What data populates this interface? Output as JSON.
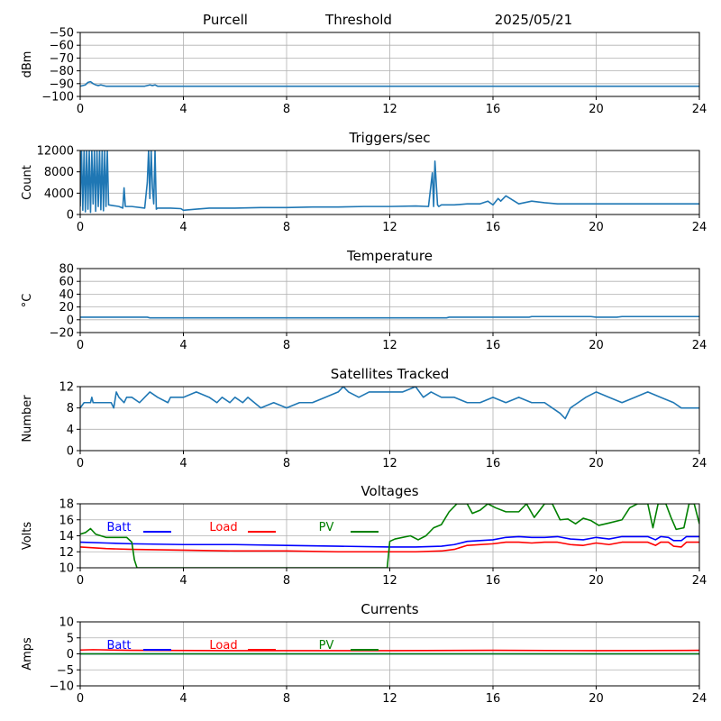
{
  "header": {
    "site": "Purcell",
    "kind": "Threshold",
    "date": "2025/05/21"
  },
  "colors": {
    "series": "#1f77b4",
    "batt": "#0000ff",
    "load": "#ff0000",
    "pv": "#008000",
    "grid": "#b0b0b0"
  },
  "chart_data": [
    {
      "id": "threshold",
      "type": "line",
      "title": "",
      "ylabel": "dBm",
      "xlim": [
        0,
        24
      ],
      "ylim": [
        -100,
        -50
      ],
      "xticks": [
        0,
        4,
        8,
        12,
        16,
        20,
        24
      ],
      "yticks": [
        -100,
        -90,
        -80,
        -70,
        -60,
        -50
      ],
      "ytick_labels": [
        "−100",
        "−90",
        "−80",
        "−70",
        "−60",
        "−50"
      ],
      "grid": true,
      "series": [
        {
          "color": "#1f77b4",
          "x": [
            0,
            0.2,
            0.3,
            0.4,
            0.5,
            0.6,
            0.7,
            0.8,
            1.0,
            1.5,
            2.0,
            2.5,
            2.7,
            2.8,
            2.9,
            3.0,
            4,
            8,
            12,
            16,
            20,
            24
          ],
          "y": [
            -92,
            -91,
            -89,
            -88.5,
            -90,
            -91,
            -91.5,
            -91,
            -92,
            -92,
            -92,
            -92,
            -91,
            -91.5,
            -91,
            -92,
            -92,
            -92,
            -92,
            -92,
            -92,
            -92
          ]
        }
      ]
    },
    {
      "id": "triggers",
      "type": "line",
      "title": "Triggers/sec",
      "ylabel": "Count",
      "xlim": [
        0,
        24
      ],
      "ylim": [
        0,
        12000
      ],
      "xticks": [
        0,
        4,
        8,
        12,
        16,
        20,
        24
      ],
      "yticks": [
        0,
        4000,
        8000,
        12000
      ],
      "ytick_labels": [
        "0",
        "4000",
        "8000",
        "12000"
      ],
      "grid": true,
      "series": [
        {
          "color": "#1f77b4",
          "x": [
            0,
            0.05,
            0.1,
            0.15,
            0.2,
            0.25,
            0.3,
            0.35,
            0.4,
            0.45,
            0.5,
            0.55,
            0.6,
            0.65,
            0.7,
            0.75,
            0.8,
            0.85,
            0.9,
            0.95,
            1.0,
            1.05,
            1.1,
            1.5,
            1.65,
            1.7,
            1.75,
            2.0,
            2.5,
            2.6,
            2.65,
            2.7,
            2.75,
            2.8,
            2.85,
            2.9,
            2.95,
            3.0,
            3.5,
            3.9,
            4.0,
            4.5,
            5,
            6,
            7,
            8,
            9,
            10,
            11,
            12,
            13,
            13.5,
            13.65,
            13.7,
            13.75,
            13.85,
            13.9,
            14,
            14.5,
            15,
            15.5,
            15.8,
            16,
            16.2,
            16.3,
            16.5,
            17,
            17.5,
            18,
            18.5,
            19,
            20,
            21,
            22,
            23,
            24
          ],
          "y": [
            1500,
            12000,
            800,
            12000,
            500,
            12000,
            1000,
            12000,
            400,
            12000,
            2000,
            12000,
            600,
            12000,
            1500,
            12000,
            900,
            12000,
            700,
            12000,
            1500,
            12000,
            1800,
            1500,
            1200,
            5000,
            1500,
            1500,
            1200,
            6000,
            12000,
            3000,
            12000,
            5000,
            2000,
            12000,
            1000,
            1200,
            1200,
            1100,
            800,
            1000,
            1200,
            1200,
            1300,
            1300,
            1400,
            1400,
            1500,
            1500,
            1600,
            1500,
            7800,
            1500,
            10000,
            1800,
            1500,
            1800,
            1800,
            2000,
            2000,
            2500,
            1800,
            3000,
            2500,
            3500,
            2000,
            2500,
            2200,
            2000,
            2000,
            2000,
            2000,
            2000,
            2000,
            2000
          ]
        }
      ]
    },
    {
      "id": "temperature",
      "type": "line",
      "title": "Temperature",
      "ylabel": "°C",
      "xlim": [
        0,
        24
      ],
      "ylim": [
        -20,
        80
      ],
      "xticks": [
        0,
        4,
        8,
        12,
        16,
        20,
        24
      ],
      "yticks": [
        -20,
        0,
        20,
        40,
        60,
        80
      ],
      "ytick_labels": [
        "−20",
        "0",
        "20",
        "40",
        "60",
        "80"
      ],
      "grid": true,
      "series": [
        {
          "color": "#1f77b4",
          "x": [
            0,
            2.6,
            2.7,
            14.2,
            14.3,
            17.4,
            17.5,
            19.8,
            20.0,
            20.8,
            21.0,
            24
          ],
          "y": [
            4,
            4,
            3,
            3,
            4,
            4,
            5,
            5,
            4,
            4,
            5,
            5
          ]
        }
      ]
    },
    {
      "id": "satellites",
      "type": "line",
      "title": "Satellites Tracked",
      "ylabel": "Number",
      "xlim": [
        0,
        24
      ],
      "ylim": [
        0,
        12
      ],
      "xticks": [
        0,
        4,
        8,
        12,
        16,
        20,
        24
      ],
      "yticks": [
        0,
        4,
        8,
        12
      ],
      "ytick_labels": [
        "0",
        "4",
        "8",
        "12"
      ],
      "grid": true,
      "series": [
        {
          "color": "#1f77b4",
          "x": [
            0,
            0.15,
            0.3,
            0.4,
            0.45,
            0.5,
            1.2,
            1.3,
            1.4,
            1.5,
            1.7,
            1.8,
            2.0,
            2.3,
            2.5,
            2.7,
            3.0,
            3.4,
            3.5,
            4.0,
            4.5,
            5.0,
            5.3,
            5.5,
            5.8,
            6.0,
            6.3,
            6.5,
            7.0,
            7.5,
            8.0,
            8.5,
            9.0,
            9.5,
            10.0,
            10.2,
            10.4,
            10.8,
            11.2,
            11.8,
            12.5,
            13.0,
            13.3,
            13.6,
            14.0,
            14.5,
            15.0,
            15.5,
            16.0,
            16.5,
            17.0,
            17.5,
            18.0,
            18.3,
            18.6,
            18.8,
            19.0,
            19.3,
            19.6,
            20.0,
            20.5,
            21.0,
            21.5,
            22.0,
            22.5,
            23.0,
            23.3,
            24
          ],
          "y": [
            8,
            9,
            9,
            9,
            10,
            9,
            9,
            8,
            11,
            10,
            9,
            10,
            10,
            9,
            10,
            11,
            10,
            9,
            10,
            10,
            11,
            10,
            9,
            10,
            9,
            10,
            9,
            10,
            8,
            9,
            8,
            9,
            9,
            10,
            11,
            12,
            11,
            10,
            11,
            11,
            11,
            12,
            10,
            11,
            10,
            10,
            9,
            9,
            10,
            9,
            10,
            9,
            9,
            8,
            7,
            6,
            8,
            9,
            10,
            11,
            10,
            9,
            10,
            11,
            10,
            9,
            8,
            8
          ]
        }
      ]
    },
    {
      "id": "voltages",
      "type": "line",
      "title": "Voltages",
      "ylabel": "Volts",
      "xlim": [
        0,
        24
      ],
      "ylim": [
        10,
        18
      ],
      "xticks": [
        0,
        4,
        8,
        12,
        16,
        20,
        24
      ],
      "yticks": [
        10,
        12,
        14,
        16,
        18
      ],
      "ytick_labels": [
        "10",
        "12",
        "14",
        "16",
        "18"
      ],
      "grid": true,
      "legend": {
        "placement": "top-left",
        "entries": [
          "Batt",
          "Load",
          "PV"
        ]
      },
      "series": [
        {
          "name": "Batt",
          "color": "#0000ff",
          "x": [
            0,
            1,
            2,
            4,
            6,
            8,
            10,
            12,
            13,
            14,
            14.5,
            15,
            16,
            16.5,
            17,
            17.5,
            18,
            18.5,
            19,
            19.5,
            20,
            20.5,
            21,
            22,
            22.3,
            22.5,
            22.8,
            23,
            23.3,
            23.5,
            24
          ],
          "y": [
            13.2,
            13.1,
            13.0,
            12.9,
            12.9,
            12.8,
            12.7,
            12.6,
            12.6,
            12.7,
            12.9,
            13.3,
            13.5,
            13.8,
            13.9,
            13.8,
            13.8,
            13.9,
            13.6,
            13.5,
            13.8,
            13.6,
            13.9,
            13.9,
            13.5,
            13.9,
            13.8,
            13.4,
            13.4,
            13.9,
            13.9
          ]
        },
        {
          "name": "Load",
          "color": "#ff0000",
          "x": [
            0,
            1,
            2,
            4,
            6,
            8,
            10,
            12,
            13,
            14,
            14.5,
            15,
            16,
            16.5,
            17,
            17.5,
            18,
            18.5,
            19,
            19.5,
            20,
            20.5,
            21,
            22,
            22.3,
            22.5,
            22.8,
            23,
            23.3,
            23.5,
            24
          ],
          "y": [
            12.6,
            12.4,
            12.3,
            12.2,
            12.1,
            12.1,
            12.0,
            12.0,
            12.0,
            12.1,
            12.3,
            12.8,
            13.0,
            13.2,
            13.2,
            13.1,
            13.2,
            13.2,
            12.9,
            12.8,
            13.1,
            12.9,
            13.2,
            13.2,
            12.8,
            13.2,
            13.2,
            12.7,
            12.6,
            13.2,
            13.2
          ]
        },
        {
          "name": "PV",
          "color": "#008000",
          "x": [
            0,
            0.2,
            0.4,
            0.6,
            1.0,
            1.5,
            1.8,
            2.0,
            2.1,
            2.15,
            2.2,
            11.9,
            12.0,
            12.2,
            12.8,
            13.1,
            13.4,
            13.7,
            14.0,
            14.3,
            14.6,
            15.0,
            15.2,
            15.5,
            15.8,
            16.1,
            16.5,
            17.0,
            17.3,
            17.6,
            18.0,
            18.3,
            18.6,
            18.9,
            19.2,
            19.5,
            19.8,
            20.1,
            20.5,
            21.0,
            21.3,
            21.6,
            22.0,
            22.2,
            22.4,
            22.7,
            22.9,
            23.1,
            23.4,
            23.6,
            23.8,
            24
          ],
          "y": [
            14.2,
            14.4,
            14.9,
            14.2,
            13.8,
            13.8,
            13.8,
            13.2,
            11.0,
            10.5,
            10.0,
            10.0,
            13.3,
            13.6,
            14.0,
            13.5,
            14.0,
            15.0,
            15.4,
            17.0,
            18.0,
            18.0,
            16.8,
            17.2,
            18.0,
            17.5,
            17.0,
            17.0,
            18.0,
            16.3,
            18.0,
            18.0,
            16.0,
            16.1,
            15.5,
            16.2,
            15.9,
            15.3,
            15.6,
            16.0,
            17.5,
            18.0,
            18.0,
            15.0,
            18.0,
            18.0,
            16.3,
            14.8,
            15.0,
            18.0,
            18.0,
            15.5
          ]
        }
      ]
    },
    {
      "id": "currents",
      "type": "line",
      "title": "Currents",
      "ylabel": "Amps",
      "xlim": [
        0,
        24
      ],
      "ylim": [
        -10,
        10
      ],
      "xticks": [
        0,
        4,
        8,
        12,
        16,
        20,
        24
      ],
      "yticks": [
        -10,
        -5,
        0,
        5,
        10
      ],
      "ytick_labels": [
        "−10",
        "−5",
        "0",
        "5",
        "10"
      ],
      "grid": true,
      "legend": {
        "placement": "top-left",
        "entries": [
          "Batt",
          "Load",
          "PV"
        ]
      },
      "series": [
        {
          "name": "Batt",
          "color": "#0000ff",
          "x": [
            0,
            24
          ],
          "y": [
            0,
            0
          ]
        },
        {
          "name": "Load",
          "color": "#ff0000",
          "x": [
            0,
            0.5,
            2,
            6,
            12,
            16,
            20,
            24
          ],
          "y": [
            1.2,
            1.3,
            1.1,
            1.0,
            1.0,
            1.1,
            1.0,
            1.1
          ]
        },
        {
          "name": "PV",
          "color": "#008000",
          "x": [
            0,
            24
          ],
          "y": [
            0,
            0
          ]
        }
      ]
    }
  ]
}
